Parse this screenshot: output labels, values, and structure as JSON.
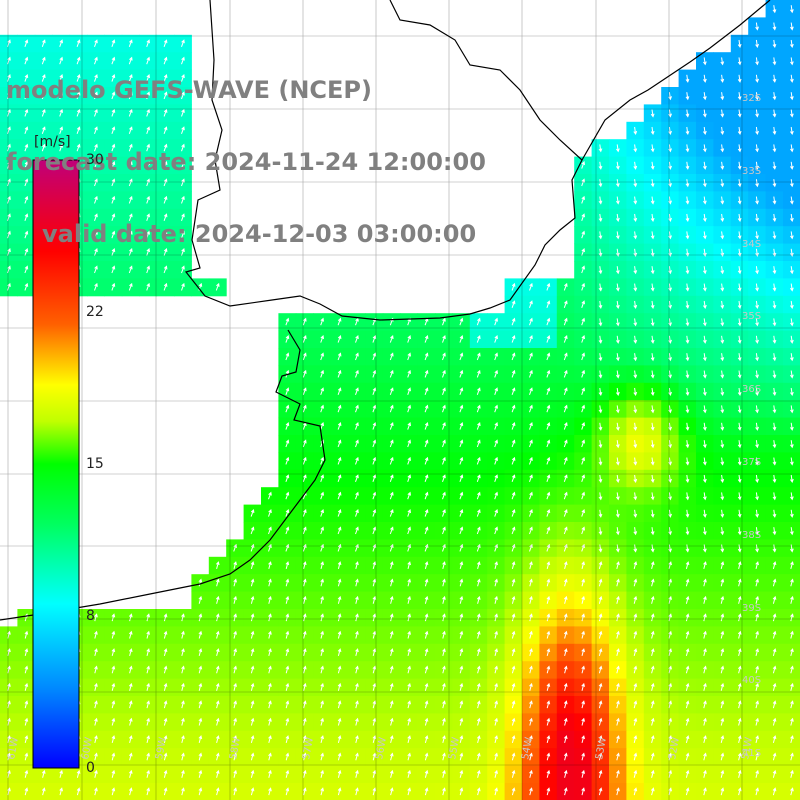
{
  "title": {
    "line1": "modelo GEFS-WAVE (NCEP)",
    "line2": "forecast date: 2024-11-24 12:00:00",
    "line3": "valid date: 2024-12-03 03:00:00"
  },
  "colorbar": {
    "unit": "[m/s]",
    "ticks": [
      {
        "value": 30,
        "label": "30"
      },
      {
        "value": 22,
        "label": "22"
      },
      {
        "value": 15,
        "label": "15"
      },
      {
        "value": 8,
        "label": "8"
      },
      {
        "value": 0,
        "label": "0"
      }
    ],
    "min": 0,
    "max": 30
  },
  "axes": {
    "lat_labels": [
      "32S",
      "33S",
      "34S",
      "35S",
      "36S",
      "37S",
      "38S",
      "39S",
      "40S",
      "41S"
    ],
    "lon_labels": [
      "61W",
      "60W",
      "59W",
      "58W",
      "57W",
      "56W",
      "55W",
      "54W",
      "53W",
      "52W",
      "51W"
    ]
  }
}
